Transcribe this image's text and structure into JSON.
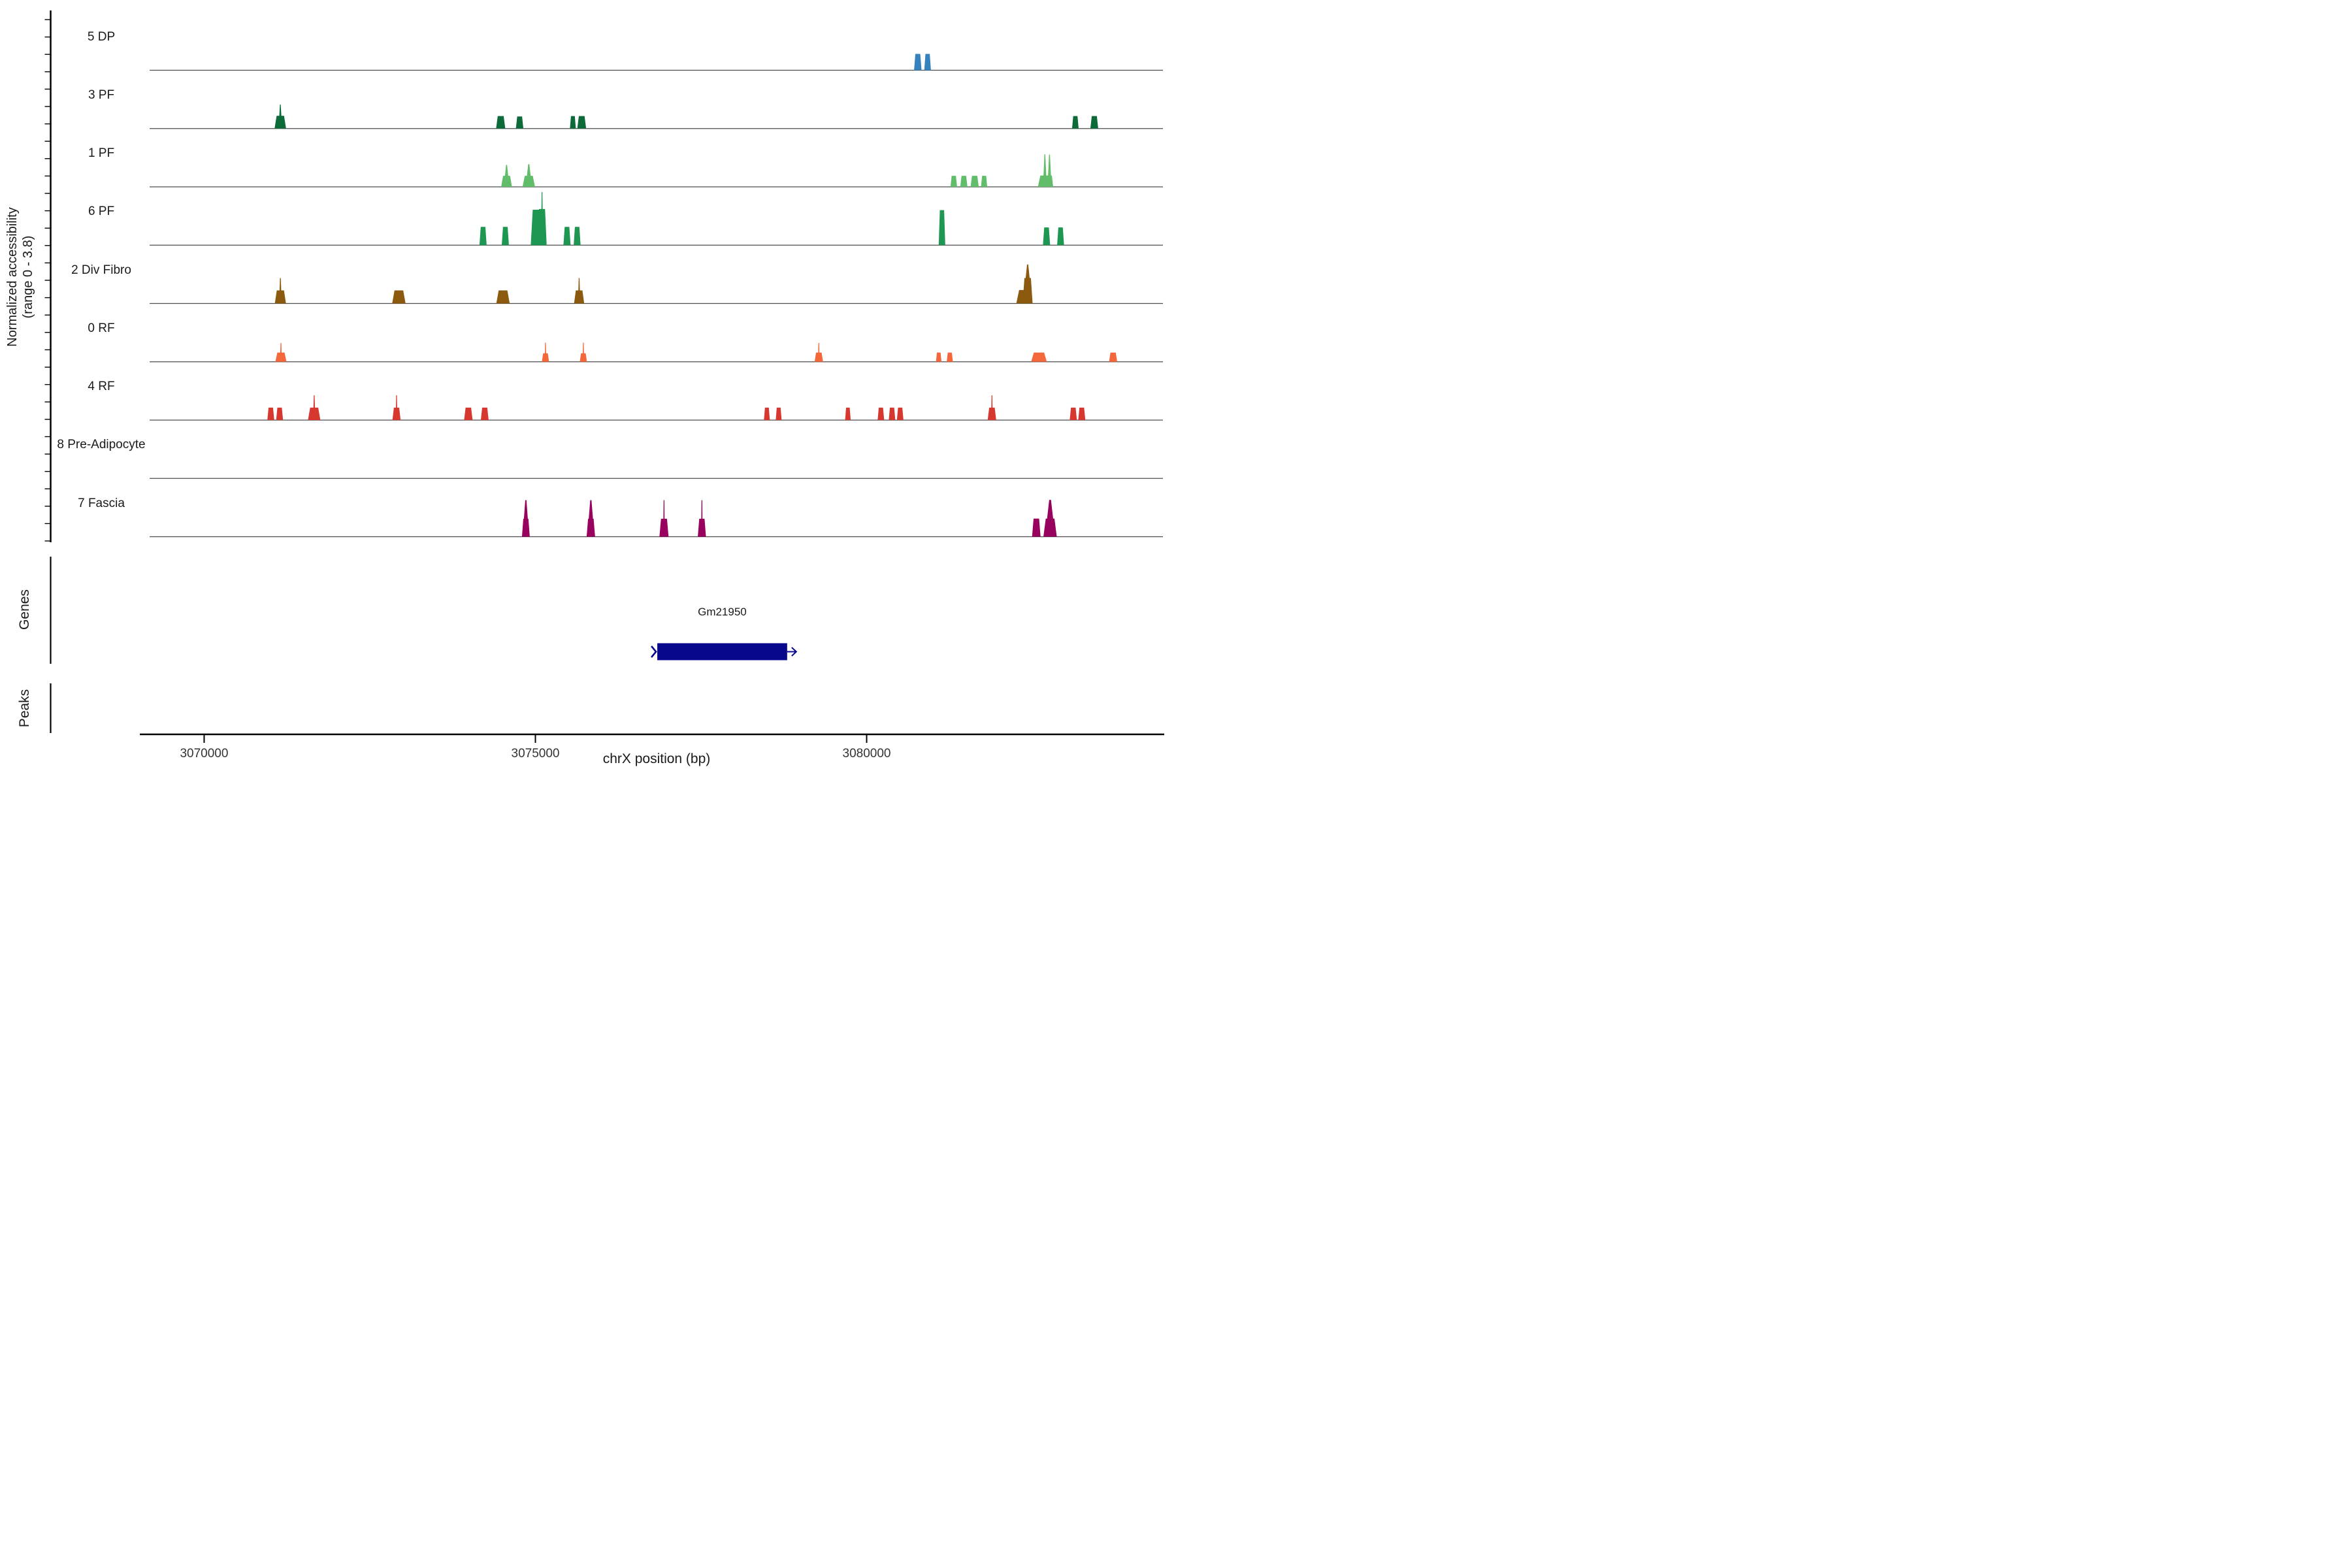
{
  "y_axis": {
    "title_line1": "Normalized accessibility",
    "title_line2": "(range 0 - 3.8)"
  },
  "x_axis": {
    "title": "chrX position (bp)",
    "tick_labels": [
      "3070000",
      "3075000",
      "3080000"
    ]
  },
  "sections": {
    "genes_label": "Genes",
    "peaks_label": "Peaks"
  },
  "chart_data": {
    "type": "area",
    "subtype": "genome-coverage-tracks",
    "xlabel": "chrX position (bp)",
    "ylabel": "Normalized accessibility (range 0 - 3.8)",
    "yrange": [
      0,
      3.8
    ],
    "region": {
      "chromosome": "chrX",
      "start": 3069177,
      "end": 3084472
    },
    "x_ticks": [
      3070000,
      3075000,
      3080000
    ],
    "grid": false,
    "baseline_color": "#4d4d4d",
    "axis_color": "#000000",
    "tracks": [
      {
        "label": "5 DP",
        "color": "#3582bd",
        "peaks": [
          {
            "pos": 3080772,
            "wbp": 113,
            "v": 1.15
          },
          {
            "pos": 3080920,
            "wbp": 100,
            "v": 1.15
          }
        ]
      },
      {
        "label": "3 PF",
        "color": "#0c6b38",
        "peaks": [
          {
            "pos": 3071150,
            "wbp": 173,
            "v": 0.9,
            "spike": 1.7,
            "spike_w": 0.18
          },
          {
            "pos": 3074476,
            "wbp": 138,
            "v": 0.88
          },
          {
            "pos": 3074762,
            "wbp": 113,
            "v": 0.85
          },
          {
            "pos": 3075566,
            "wbp": 89,
            "v": 0.88
          },
          {
            "pos": 3075699,
            "wbp": 133,
            "v": 0.88
          },
          {
            "pos": 3083150,
            "wbp": 99,
            "v": 0.88
          },
          {
            "pos": 3083436,
            "wbp": 118,
            "v": 0.88
          }
        ]
      },
      {
        "label": "1 PF",
        "color": "#61bd6a",
        "peaks": [
          {
            "pos": 3074565,
            "wbp": 163,
            "v": 0.78,
            "spike": 1.55,
            "spike_w": 0.3
          },
          {
            "pos": 3074900,
            "wbp": 187,
            "v": 0.78,
            "spike": 1.6,
            "spike_w": 0.3
          },
          {
            "pos": 3081315,
            "wbp": 99,
            "v": 0.78
          },
          {
            "pos": 3081467,
            "wbp": 108,
            "v": 0.78
          },
          {
            "pos": 3081630,
            "wbp": 123,
            "v": 0.78
          },
          {
            "pos": 3081773,
            "wbp": 94,
            "v": 0.78
          },
          {
            "pos": 3082690,
            "wbp": 210,
            "v": 0.8,
            "spike": 2.3,
            "spike_w": 0.2
          },
          {
            "pos": 3082760,
            "wbp": 110,
            "v": 0.8,
            "spike": 2.28,
            "spike_w": 0.4
          }
        ]
      },
      {
        "label": "6 PF",
        "color": "#1d9751",
        "peaks": [
          {
            "pos": 3074210,
            "wbp": 108,
            "v": 1.29
          },
          {
            "pos": 3074546,
            "wbp": 108,
            "v": 1.29
          },
          {
            "pos": 3075015,
            "wbp": 170,
            "v": 2.5
          },
          {
            "pos": 3075100,
            "wbp": 140,
            "v": 2.55,
            "spike": 3.75,
            "spike_w": 0.12
          },
          {
            "pos": 3075477,
            "wbp": 108,
            "v": 1.29
          },
          {
            "pos": 3075630,
            "wbp": 104,
            "v": 1.29
          },
          {
            "pos": 3081137,
            "wbp": 99,
            "v": 2.47
          },
          {
            "pos": 3082715,
            "wbp": 108,
            "v": 1.25
          },
          {
            "pos": 3082927,
            "wbp": 104,
            "v": 1.25
          }
        ]
      },
      {
        "label": "2 Div Fibro",
        "color": "#8c5a0e",
        "peaks": [
          {
            "pos": 3071151,
            "wbp": 168,
            "v": 0.92,
            "spike": 1.8,
            "spike_w": 0.15
          },
          {
            "pos": 3072939,
            "wbp": 202,
            "v": 0.92
          },
          {
            "pos": 3074511,
            "wbp": 202,
            "v": 0.92
          },
          {
            "pos": 3075660,
            "wbp": 153,
            "v": 0.92,
            "spike": 1.8,
            "spike_w": 0.15
          },
          {
            "pos": 3082380,
            "wbp": 242,
            "v": 0.95
          },
          {
            "pos": 3082430,
            "wbp": 150,
            "v": 1.8,
            "spike": 2.75,
            "spike_w": 0.4
          }
        ]
      },
      {
        "label": "0 RF",
        "color": "#f4673a",
        "peaks": [
          {
            "pos": 3071159,
            "wbp": 168,
            "v": 0.65,
            "spike": 1.33,
            "spike_w": 0.12
          },
          {
            "pos": 3075152,
            "wbp": 108,
            "v": 0.6,
            "spike": 1.35,
            "spike_w": 0.15
          },
          {
            "pos": 3075724,
            "wbp": 108,
            "v": 0.6,
            "spike": 1.35,
            "spike_w": 0.15
          },
          {
            "pos": 3079278,
            "wbp": 128,
            "v": 0.65,
            "spike": 1.33,
            "spike_w": 0.12
          },
          {
            "pos": 3081088,
            "wbp": 84,
            "v": 0.65
          },
          {
            "pos": 3081255,
            "wbp": 94,
            "v": 0.65
          },
          {
            "pos": 3082601,
            "wbp": 237,
            "v": 0.65
          },
          {
            "pos": 3083720,
            "wbp": 123,
            "v": 0.65
          }
        ]
      },
      {
        "label": "4 RF",
        "color": "#d6382f",
        "peaks": [
          {
            "pos": 3071006,
            "wbp": 104,
            "v": 0.88
          },
          {
            "pos": 3071139,
            "wbp": 104,
            "v": 0.88
          },
          {
            "pos": 3071661,
            "wbp": 187,
            "v": 0.88,
            "spike": 1.75,
            "spike_w": 0.12
          },
          {
            "pos": 3072904,
            "wbp": 123,
            "v": 0.88,
            "spike": 1.75,
            "spike_w": 0.12
          },
          {
            "pos": 3073988,
            "wbp": 128,
            "v": 0.88
          },
          {
            "pos": 3074235,
            "wbp": 118,
            "v": 0.88
          },
          {
            "pos": 3078494,
            "wbp": 89,
            "v": 0.88
          },
          {
            "pos": 3078672,
            "wbp": 89,
            "v": 0.88
          },
          {
            "pos": 3079717,
            "wbp": 84,
            "v": 0.88
          },
          {
            "pos": 3080215,
            "wbp": 99,
            "v": 0.88
          },
          {
            "pos": 3080383,
            "wbp": 99,
            "v": 0.88
          },
          {
            "pos": 3080506,
            "wbp": 99,
            "v": 0.88
          },
          {
            "pos": 3081891,
            "wbp": 128,
            "v": 0.88,
            "spike": 1.75,
            "spike_w": 0.12
          },
          {
            "pos": 3083119,
            "wbp": 108,
            "v": 0.88
          },
          {
            "pos": 3083247,
            "wbp": 108,
            "v": 0.88
          }
        ]
      },
      {
        "label": "8 Pre-Adipocyte",
        "color": "#bdbdbd",
        "peaks": []
      },
      {
        "label": "7 Fascia",
        "color": "#99015f",
        "peaks": [
          {
            "pos": 3074856,
            "wbp": 118,
            "v": 1.27,
            "spike": 2.58,
            "spike_w": 0.5
          },
          {
            "pos": 3075837,
            "wbp": 128,
            "v": 1.27,
            "spike": 2.58,
            "spike_w": 0.5
          },
          {
            "pos": 3076941,
            "wbp": 138,
            "v": 1.27,
            "spike": 2.58,
            "spike_w": 0.1
          },
          {
            "pos": 3077513,
            "wbp": 123,
            "v": 1.27,
            "spike": 2.58,
            "spike_w": 0.1
          },
          {
            "pos": 3082561,
            "wbp": 128,
            "v": 1.28
          },
          {
            "pos": 3082769,
            "wbp": 202,
            "v": 1.28,
            "spike": 2.6,
            "spike_w": 0.45
          }
        ]
      }
    ],
    "genes": [
      {
        "name": "Gm21950",
        "start": 3076840,
        "end": 3078800,
        "strand": "+",
        "color": "#08088c"
      }
    ],
    "peaks_intervals": []
  }
}
